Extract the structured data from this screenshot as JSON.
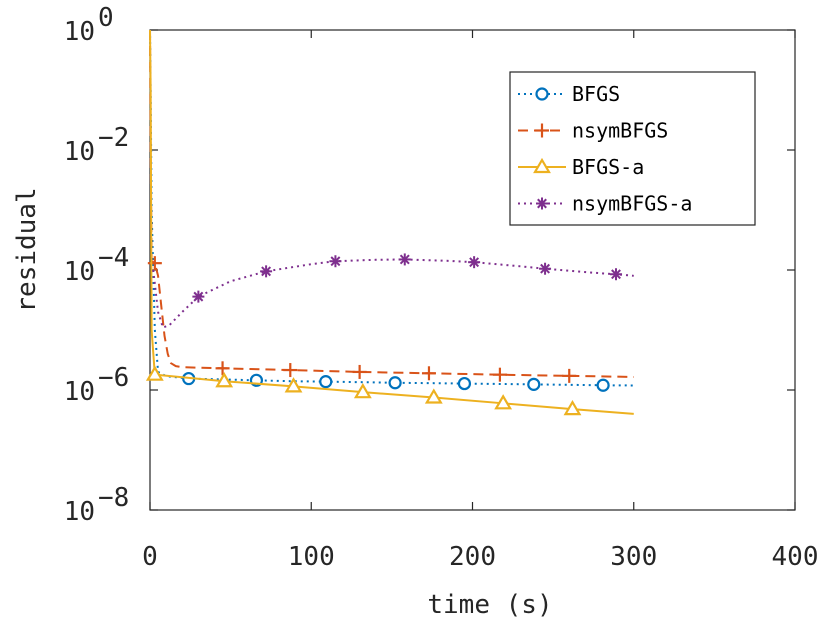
{
  "chart_data": {
    "type": "line",
    "xlabel": "time (s)",
    "ylabel": "residual",
    "xlim": [
      0,
      400
    ],
    "ylim_log10": [
      -8,
      0
    ],
    "yscale": "log",
    "grid": false,
    "legend_position": "top-right",
    "xticks": [
      0,
      100,
      200,
      300,
      400
    ],
    "xtick_labels": [
      "0",
      "100",
      "200",
      "300",
      "400"
    ],
    "yticks_exponent": [
      0,
      -2,
      -4,
      -6,
      -8
    ],
    "ytick_base": "10",
    "ytick_exponent_labels": [
      "0",
      "−2",
      "−4",
      "−6",
      "−8"
    ],
    "series": [
      {
        "name": "BFGS",
        "color": "#0072BD",
        "line_style": "dotted",
        "marker": "circle",
        "x": [
          0,
          0.4,
          1,
          2,
          3,
          5,
          10,
          24,
          45,
          66,
          88,
          109,
          131,
          152,
          174,
          195,
          217,
          238,
          260,
          281,
          300
        ],
        "y": [
          1,
          0.1,
          0.001,
          0.0001,
          1e-05,
          2e-06,
          1.7e-06,
          1.55e-06,
          1.5e-06,
          1.45e-06,
          1.4e-06,
          1.38e-06,
          1.35e-06,
          1.32e-06,
          1.3e-06,
          1.28e-06,
          1.26e-06,
          1.24e-06,
          1.22e-06,
          1.2e-06,
          1.19e-06
        ],
        "marker_x": [
          24,
          66,
          109,
          152,
          195,
          238,
          281
        ],
        "marker_y": [
          1.55e-06,
          1.45e-06,
          1.38e-06,
          1.32e-06,
          1.28e-06,
          1.24e-06,
          1.2e-06
        ]
      },
      {
        "name": "nsymBFGS",
        "color": "#D95319",
        "line_style": "dashed",
        "marker": "plus",
        "x": [
          0,
          0.4,
          1,
          3,
          5,
          7,
          9,
          11,
          13,
          16,
          20,
          30,
          45,
          87,
          130,
          173,
          217,
          260,
          300
        ],
        "y": [
          1,
          0.01,
          0.00014,
          0.00013,
          8e-05,
          2.5e-05,
          8e-06,
          4e-06,
          2.8e-06,
          2.5e-06,
          2.4e-06,
          2.35e-06,
          2.3e-06,
          2.15e-06,
          2e-06,
          1.9e-06,
          1.8e-06,
          1.72e-06,
          1.65e-06
        ],
        "marker_x": [
          3,
          45,
          87,
          130,
          173,
          217,
          260
        ],
        "marker_y": [
          0.00013,
          2.3e-06,
          2.15e-06,
          2e-06,
          1.9e-06,
          1.8e-06,
          1.72e-06
        ]
      },
      {
        "name": "BFGS-a",
        "color": "#EDB120",
        "line_style": "solid",
        "marker": "triangle",
        "x": [
          0,
          0.4,
          1,
          3,
          46,
          89,
          132,
          176,
          219,
          262,
          300
        ],
        "y": [
          1,
          0.1,
          1e-05,
          1.8e-06,
          1.4e-06,
          1.15e-06,
          9.2e-07,
          7.5e-07,
          6e-07,
          4.8e-07,
          4e-07
        ],
        "marker_x": [
          3,
          46,
          89,
          132,
          176,
          219,
          262
        ],
        "marker_y": [
          1.8e-06,
          1.4e-06,
          1.15e-06,
          9.2e-07,
          7.5e-07,
          6e-07,
          4.8e-07
        ]
      },
      {
        "name": "nsymBFGS-a",
        "color": "#7E2F8E",
        "line_style": "dotted",
        "marker": "asterisk",
        "x": [
          2,
          5,
          8,
          12,
          20,
          30,
          50,
          72,
          100,
          115,
          140,
          158,
          185,
          201,
          230,
          245,
          275,
          289,
          300
        ],
        "y": [
          0.0001,
          2e-05,
          1.1e-05,
          1.2e-05,
          2e-05,
          3.6e-05,
          6.5e-05,
          9.5e-05,
          0.000125,
          0.00014,
          0.000148,
          0.00015,
          0.000142,
          0.000135,
          0.000115,
          0.000105,
          9e-05,
          8.5e-05,
          8e-05
        ],
        "marker_x": [
          30,
          72,
          115,
          158,
          201,
          245,
          289
        ],
        "marker_y": [
          3.6e-05,
          9.5e-05,
          0.00014,
          0.00015,
          0.000135,
          0.000105,
          8.5e-05
        ]
      }
    ]
  }
}
